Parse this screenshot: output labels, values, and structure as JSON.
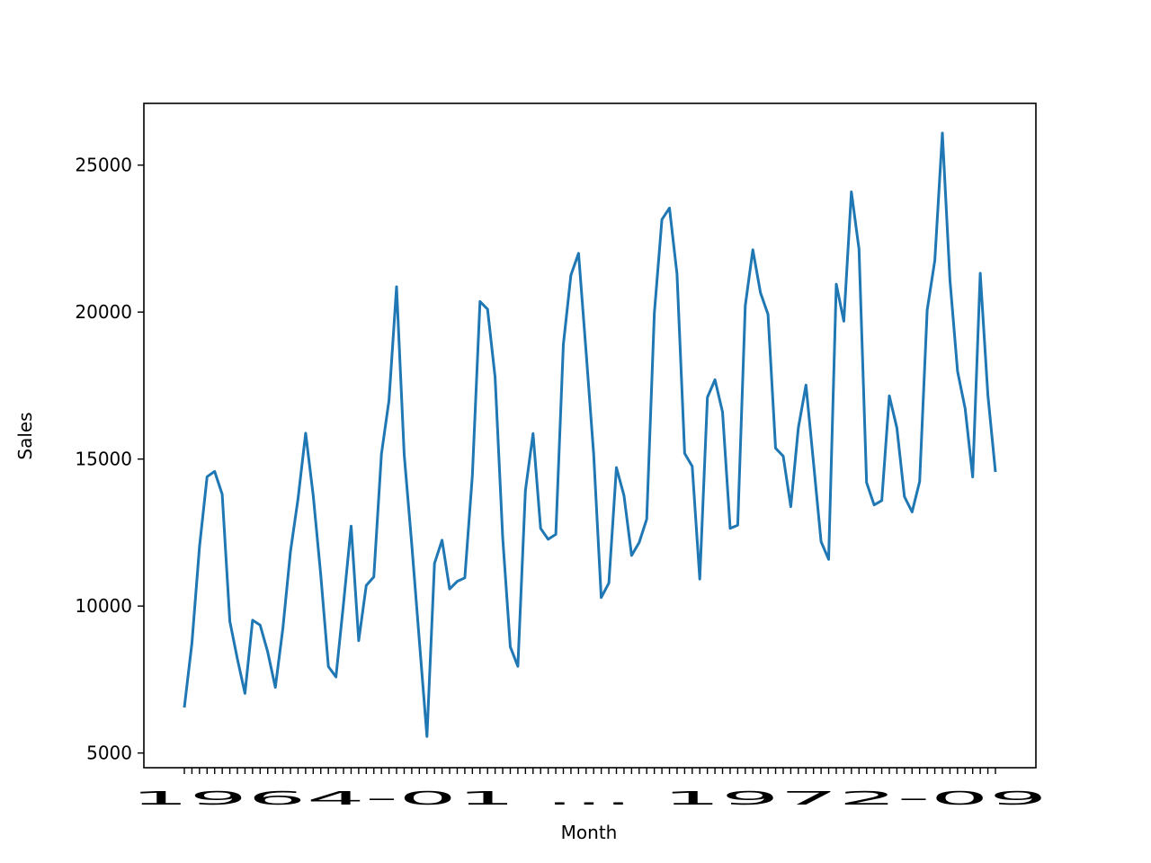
{
  "chart_data": {
    "type": "line",
    "title": "",
    "xlabel": "Month",
    "ylabel": "Sales",
    "ylim": [
      4500,
      27100
    ],
    "yticks": [
      5000,
      10000,
      15000,
      20000,
      25000
    ],
    "ytick_labels": [
      "5000",
      "10000",
      "15000",
      "20000",
      "25000"
    ],
    "grid": false,
    "legend": "none",
    "line_color": "#1f77b4",
    "x_overlapping_tick_text": "1964-01 ... 1972-09",
    "series": [
      {
        "values": [
          6550,
          8730,
          12030,
          14400,
          14580,
          13800,
          9480,
          8200,
          7030,
          9520,
          9350,
          8440,
          7230,
          9250,
          11850,
          13640,
          15880,
          13770,
          11060,
          7940,
          7590,
          10080,
          12720,
          8820,
          10700,
          10990,
          15170,
          17000,
          20860,
          15150,
          12100,
          8840,
          5560,
          11450,
          12240,
          10580,
          10840,
          10960,
          14440,
          20360,
          20100,
          17780,
          12300,
          8610,
          7950,
          13930,
          15870,
          12640,
          12270,
          12440,
          18900,
          21260,
          22000,
          18640,
          15170,
          10290,
          10780,
          14710,
          13760,
          11720,
          12160,
          12960,
          19970,
          23150,
          23540,
          21290,
          15190,
          14750,
          10920,
          17100,
          17700,
          16600,
          12640,
          12750,
          20220,
          22120,
          20660,
          19920,
          15370,
          15100,
          13380,
          16060,
          17520,
          14870,
          12190,
          11590,
          20950,
          19690,
          24090,
          22140,
          14200,
          13440,
          13590,
          17150,
          16060,
          13720,
          13200,
          14230,
          20070,
          21760,
          26090,
          21100,
          17980,
          16720,
          14390,
          21320,
          17180,
          14560
        ]
      }
    ]
  }
}
